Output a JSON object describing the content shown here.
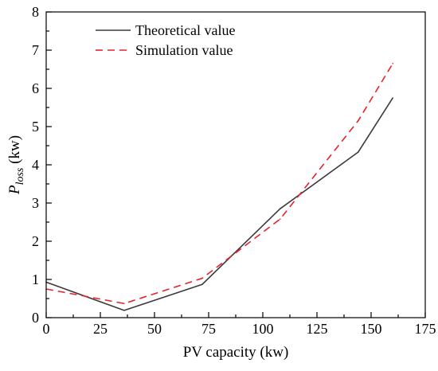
{
  "chart_data": {
    "type": "line",
    "xlabel": "PV capacity (kw)",
    "ylabel": {
      "main": "P",
      "sub": "loss",
      "unit": " (kw)"
    },
    "xlim": [
      0,
      175
    ],
    "ylim": [
      0,
      8
    ],
    "xticks": [
      0,
      25,
      50,
      75,
      100,
      125,
      150,
      175
    ],
    "yticks": [
      0,
      1,
      2,
      3,
      4,
      5,
      6,
      7,
      8
    ],
    "grid": false,
    "legend_position": "top-left",
    "series": [
      {
        "name": "Theoretical value",
        "style": "solid",
        "color": "#3a3a3a",
        "x": [
          0,
          36,
          72,
          108,
          144,
          160
        ],
        "y": [
          0.93,
          0.19,
          0.87,
          2.85,
          4.33,
          5.75
        ]
      },
      {
        "name": "Simulation value",
        "style": "dashed",
        "color": "#e8212b",
        "x": [
          0,
          36,
          72,
          108,
          144,
          160
        ],
        "y": [
          0.75,
          0.37,
          1.03,
          2.58,
          5.15,
          6.65
        ]
      }
    ]
  }
}
